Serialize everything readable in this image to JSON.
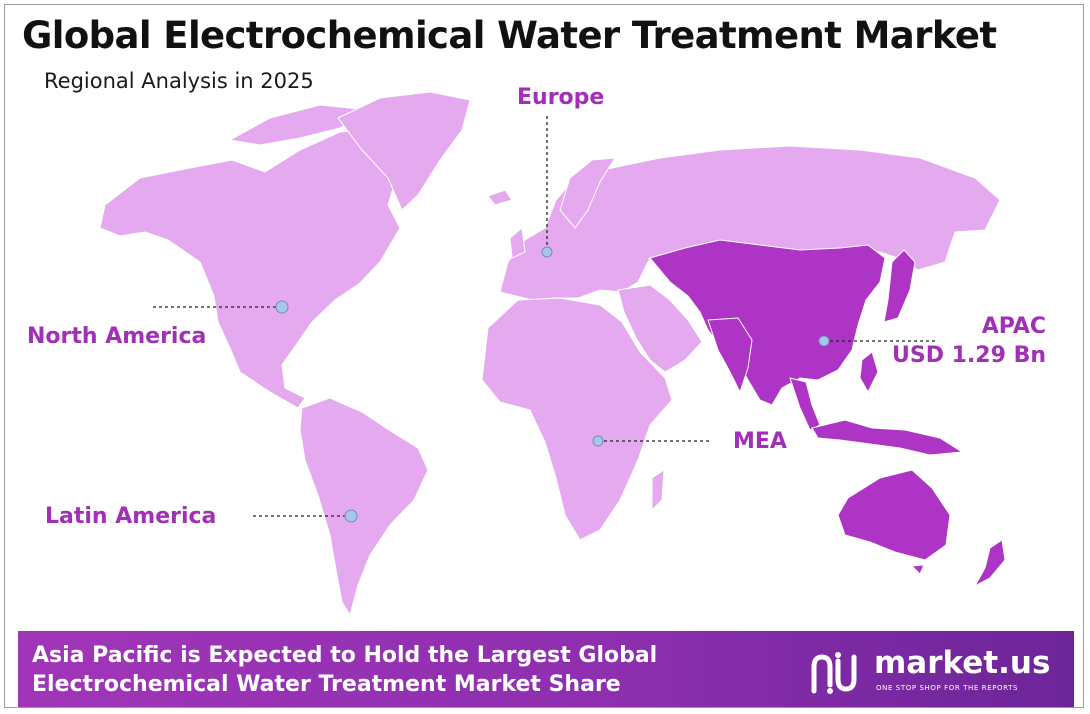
{
  "header": {
    "title": "Global Electrochemical Water Treatment Market",
    "subtitle": "Regional Analysis in 2025"
  },
  "regions": {
    "north_america": {
      "label": "North America"
    },
    "europe": {
      "label": "Europe"
    },
    "apac": {
      "label": "APAC",
      "value": "USD 1.29 Bn",
      "highlighted": true
    },
    "mea": {
      "label": "MEA"
    },
    "latin_america": {
      "label": "Latin America"
    }
  },
  "banner": {
    "line1": "Asia Pacific is Expected to Hold the Largest Global",
    "line2": "Electrochemical Water Treatment Market Share"
  },
  "brand": {
    "name": "market.us",
    "tagline": "ONE STOP SHOP FOR THE REPORTS"
  },
  "colors": {
    "land": "#e4a9ef",
    "highlight": "#ad34c5",
    "label": "#a22fb7",
    "marker": "#a9c6ea",
    "banner": "#a135b8"
  }
}
